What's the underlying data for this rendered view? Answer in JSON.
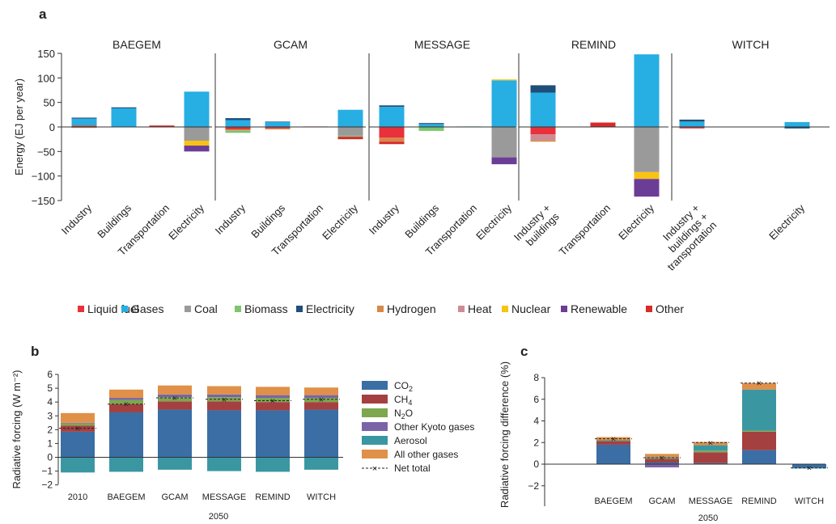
{
  "panel_labels": {
    "a": "a",
    "b": "b",
    "c": "c"
  },
  "colors": {
    "Liquid fuel": "#e8313a",
    "Gases": "#27aee3",
    "Coal": "#9a9a9a",
    "Biomass": "#7dc56e",
    "Electricity": "#1f4e79",
    "Hydrogen": "#d7894a",
    "Heat": "#cf8b94",
    "Nuclear": "#f9c313",
    "Renewable": "#6c3d96",
    "Other": "#d72a2a",
    "CO2": "#3a6ea5",
    "CH4": "#a54040",
    "N2O": "#7da84e",
    "Other Kyoto gases": "#7a64a8",
    "Aerosol": "#3a97a2",
    "All other gases": "#e09048",
    "Net total": "#222222"
  },
  "chart_data": [
    {
      "id": "a",
      "type": "bar",
      "stacked": true,
      "ylabel": "Energy (EJ per year)",
      "ylim": [
        -150,
        150
      ],
      "yticks": [
        "150",
        "100",
        "50",
        "0",
        "−50",
        "−100",
        "−150"
      ],
      "legend": [
        "Liquid fuel",
        "Gases",
        "Coal",
        "Biomass",
        "Electricity",
        "Hydrogen",
        "Heat",
        "Nuclear",
        "Renewable",
        "Other"
      ],
      "legend_placement": "bottom",
      "facets": [
        {
          "title": "BAEGEM",
          "categories": [
            "Industry",
            "Buildings",
            "Transportation",
            "Electricity"
          ],
          "bars": [
            {
              "pos": [
                [
                  "Liquid fuel",
                  3
                ],
                [
                  "Gases",
                  14
                ],
                [
                  "Electricity",
                  2
                ]
              ],
              "neg": [
                [
                  "Biomass",
                  -2
                ]
              ]
            },
            {
              "pos": [
                [
                  "Gases",
                  38
                ],
                [
                  "Electricity",
                  2
                ]
              ],
              "neg": []
            },
            {
              "pos": [
                [
                  "Other",
                  3
                ]
              ],
              "neg": []
            },
            {
              "pos": [
                [
                  "Gases",
                  72
                ]
              ],
              "neg": [
                [
                  "Coal",
                  -28
                ],
                [
                  "Nuclear",
                  -10
                ],
                [
                  "Renewable",
                  -12
                ]
              ]
            }
          ]
        },
        {
          "title": "GCAM",
          "categories": [
            "Industry",
            "Buildings",
            "Transportation",
            "Electricity"
          ],
          "bars": [
            {
              "pos": [
                [
                  "Gases",
                  14
                ],
                [
                  "Electricity",
                  4
                ]
              ],
              "neg": [
                [
                  "Liquid fuel",
                  -5
                ],
                [
                  "Hydrogen",
                  -2
                ],
                [
                  "Biomass",
                  -5
                ]
              ]
            },
            {
              "pos": [
                [
                  "Gases",
                  10
                ],
                [
                  "Electricity",
                  1
                ]
              ],
              "neg": [
                [
                  "Liquid fuel",
                  -3
                ],
                [
                  "Hydrogen",
                  -2
                ]
              ]
            },
            {
              "pos": [
                [
                  "Other",
                  1
                ]
              ],
              "neg": []
            },
            {
              "pos": [
                [
                  "Gases",
                  35
                ]
              ],
              "neg": [
                [
                  "Coal",
                  -18
                ],
                [
                  "Biomass",
                  -2
                ],
                [
                  "Other",
                  -5
                ]
              ]
            }
          ]
        },
        {
          "title": "MESSAGE",
          "categories": [
            "Industry",
            "Buildings",
            "Transportation",
            "Electricity"
          ],
          "bars": [
            {
              "pos": [
                [
                  "Gases",
                  41
                ],
                [
                  "Electricity",
                  3
                ]
              ],
              "neg": [
                [
                  "Liquid fuel",
                  -22
                ],
                [
                  "Hydrogen",
                  -8
                ],
                [
                  "Other",
                  -5
                ]
              ]
            },
            {
              "pos": [
                [
                  "Gases",
                  6
                ],
                [
                  "Electricity",
                  2
                ]
              ],
              "neg": [
                [
                  "Biomass",
                  -8
                ]
              ]
            },
            {
              "pos": [
                [
                  "Gases",
                  1
                ]
              ],
              "neg": []
            },
            {
              "pos": [
                [
                  "Gases",
                  95
                ],
                [
                  "Nuclear",
                  2
                ]
              ],
              "neg": [
                [
                  "Coal",
                  -62
                ],
                [
                  "Renewable",
                  -14
                ]
              ]
            }
          ]
        },
        {
          "title": "REMIND",
          "categories": [
            "Industry + buildings",
            "Transportation",
            "Electricity"
          ],
          "bars": [
            {
              "pos": [
                [
                  "Gases",
                  70
                ],
                [
                  "Electricity",
                  15
                ]
              ],
              "neg": [
                [
                  "Liquid fuel",
                  -15
                ],
                [
                  "Heat",
                  -12
                ],
                [
                  "Hydrogen",
                  -3
                ]
              ]
            },
            {
              "pos": [
                [
                  "Other",
                  9
                ]
              ],
              "neg": []
            },
            {
              "pos": [
                [
                  "Gases",
                  148
                ]
              ],
              "neg": [
                [
                  "Coal",
                  -92
                ],
                [
                  "Nuclear",
                  -14
                ],
                [
                  "Renewable",
                  -36
                ]
              ]
            }
          ]
        },
        {
          "title": "WITCH",
          "categories": [
            "Industry + buildings + transportation",
            "Electricity"
          ],
          "bars": [
            {
              "pos": [
                [
                  "Gases",
                  11
                ],
                [
                  "Electricity",
                  4
                ]
              ],
              "neg": [
                [
                  "Liquid fuel",
                  -3
                ]
              ]
            },
            {
              "pos": [
                [
                  "Gases",
                  10
                ]
              ],
              "neg": [
                [
                  "Electricity",
                  -3
                ]
              ]
            }
          ]
        }
      ]
    },
    {
      "id": "b",
      "type": "bar",
      "stacked": true,
      "ylabel": "Radiative forcing (W m⁻²)",
      "ylim": [
        -3,
        6
      ],
      "yticks": [
        "6",
        "5",
        "4",
        "3",
        "2",
        "1",
        "0",
        "−1",
        "−2"
      ],
      "categories": [
        "2010",
        "BAEGEM",
        "GCAM",
        "MESSAGE",
        "REMIND",
        "WITCH"
      ],
      "xlabel": "2050",
      "series": [
        {
          "name": "CO2",
          "values": [
            1.85,
            3.25,
            3.45,
            3.4,
            3.4,
            3.45
          ]
        },
        {
          "name": "CH4",
          "values": [
            0.45,
            0.6,
            0.6,
            0.65,
            0.6,
            0.55
          ]
        },
        {
          "name": "N2O",
          "values": [
            0.15,
            0.3,
            0.3,
            0.3,
            0.3,
            0.3
          ]
        },
        {
          "name": "Other Kyoto gases",
          "values": [
            0.05,
            0.15,
            0.2,
            0.2,
            0.2,
            0.2
          ]
        },
        {
          "name": "Aerosol",
          "values": [
            -1.1,
            -1.05,
            -0.9,
            -1.0,
            -1.05,
            -0.9
          ]
        },
        {
          "name": "All other gases",
          "values": [
            0.7,
            0.6,
            0.65,
            0.6,
            0.6,
            0.55
          ]
        }
      ],
      "net_total": [
        2.1,
        3.85,
        4.3,
        4.2,
        4.1,
        4.2
      ],
      "legend": [
        {
          "sub_base": "CO",
          "sub": "2"
        },
        {
          "sub_base": "CH",
          "sub": "4"
        },
        {
          "sub_base": "N",
          "sub": "2",
          "after": "O"
        },
        {
          "text": "Other Kyoto gases"
        },
        {
          "text": "Aerosol"
        },
        {
          "text": "All other gases"
        },
        {
          "text": "Net total"
        }
      ],
      "legend_placement": "right"
    },
    {
      "id": "c",
      "type": "bar",
      "stacked": true,
      "ylabel": "Radiative forcing difference (%)",
      "ylim": [
        -4,
        8
      ],
      "yticks": [
        "8",
        "6",
        "4",
        "2",
        "0",
        "−2"
      ],
      "categories": [
        "BAEGEM",
        "GCAM",
        "MESSAGE",
        "REMIND",
        "WITCH"
      ],
      "xlabel": "2050",
      "series": [
        {
          "name": "CO2",
          "values": [
            1.8,
            0.15,
            0.1,
            1.3,
            -0.3
          ]
        },
        {
          "name": "CH4",
          "values": [
            0.35,
            0.35,
            1.0,
            1.7,
            0
          ]
        },
        {
          "name": "N2O",
          "values": [
            0.05,
            0.05,
            0.15,
            0.1,
            0
          ]
        },
        {
          "name": "Other Kyoto gases",
          "values": [
            0,
            -0.3,
            0,
            0,
            0
          ]
        },
        {
          "name": "Aerosol",
          "values": [
            0.05,
            0.1,
            0.5,
            3.8,
            -0.1
          ]
        },
        {
          "name": "All other gases",
          "values": [
            0.25,
            0.3,
            0.3,
            0.6,
            0
          ]
        }
      ],
      "net_total": [
        2.35,
        0.6,
        2.0,
        7.5,
        -0.35
      ]
    }
  ]
}
